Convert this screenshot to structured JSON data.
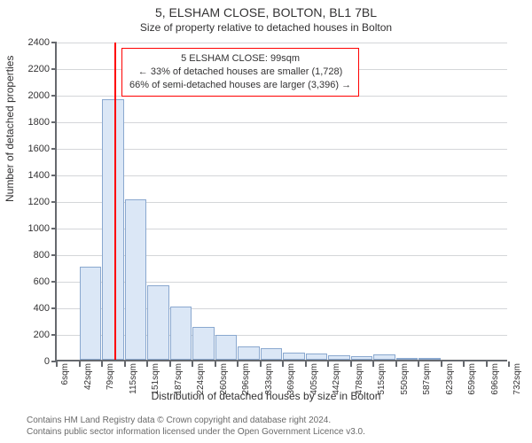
{
  "title": "5, ELSHAM CLOSE, BOLTON, BL1 7BL",
  "subtitle": "Size of property relative to detached houses in Bolton",
  "ylabel": "Number of detached properties",
  "xlabel": "Distribution of detached houses by size in Bolton",
  "footer_line1": "Contains HM Land Registry data © Crown copyright and database right 2024.",
  "footer_line2": "Contains public sector information licensed under the Open Government Licence v3.0.",
  "chart": {
    "ylim": [
      0,
      2400
    ],
    "ytick_step": 200,
    "xticks": [
      "6sqm",
      "42sqm",
      "79sqm",
      "115sqm",
      "151sqm",
      "187sqm",
      "224sqm",
      "260sqm",
      "296sqm",
      "333sqm",
      "369sqm",
      "405sqm",
      "442sqm",
      "478sqm",
      "515sqm",
      "550sqm",
      "587sqm",
      "623sqm",
      "659sqm",
      "696sqm",
      "732sqm"
    ],
    "bars": [
      0,
      700,
      1960,
      1210,
      560,
      400,
      250,
      190,
      100,
      90,
      55,
      45,
      35,
      30,
      40,
      10,
      10,
      0,
      0,
      0
    ],
    "bar_fill": "#dbe7f6",
    "bar_stroke": "#8aa8cf",
    "grid_color": "#d4d6d9",
    "axis_color": "#66696e",
    "background": "#ffffff",
    "marker_bin_index": 2,
    "marker_fraction_in_bin": 0.55,
    "marker_color": "#ff0000",
    "annotation": {
      "lines": [
        "5 ELSHAM CLOSE: 99sqm",
        "← 33% of detached houses are smaller (1,728)",
        "66% of semi-detached houses are larger (3,396) →"
      ],
      "border_color": "#ff0000",
      "background": "#ffffff"
    }
  }
}
